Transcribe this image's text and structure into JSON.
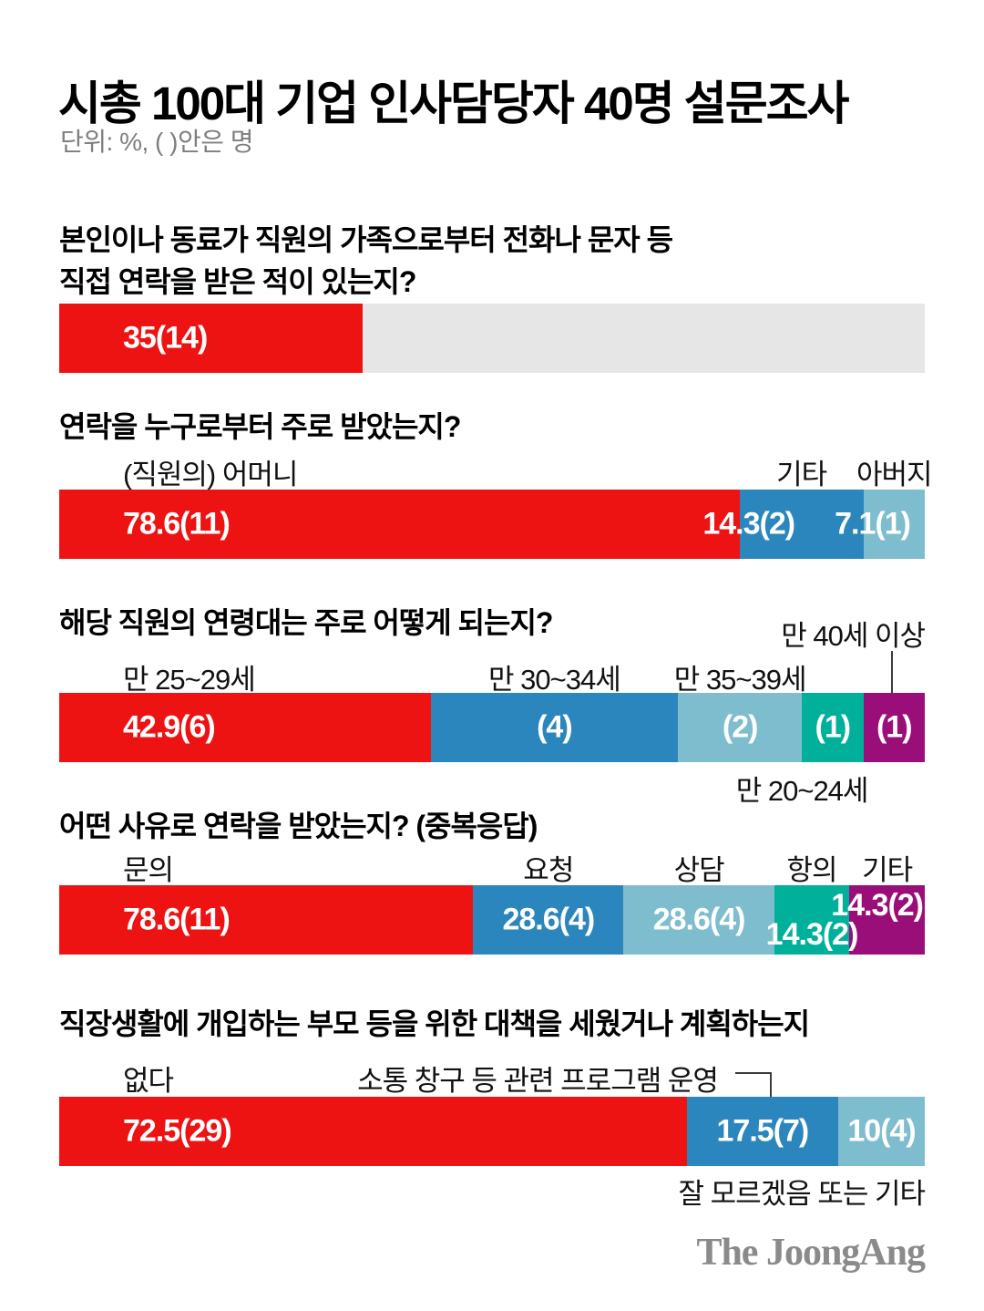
{
  "title": "시총 100대 기업 인사담당자 40명 설문조사",
  "unit_note": "단위: %, ( )안은 명",
  "logo_text": "The JoongAng",
  "colors": {
    "red": "#ee1313",
    "blue": "#2b86bd",
    "light_blue": "#7dbdcd",
    "teal": "#00b09b",
    "purple": "#9a0e79",
    "track_gray": "#e6e6e6",
    "connector": "#3c3c3c",
    "text_black": "#111111",
    "muted_gray": "#7e7e7e",
    "logo_gray": "#8a8a8a"
  },
  "chart_data": [
    {
      "type": "bar",
      "question": "본인이나 동료가 직원의 가족으로부터 전화나 문자 등\n직접 연락을 받은 적이 있는지?",
      "multi_response": false,
      "segments": [
        {
          "display": "35(14)",
          "pct": 35,
          "count": 14,
          "color": "red"
        }
      ]
    },
    {
      "type": "bar",
      "question": "연락을 누구로부터 주로 받았는지?",
      "multi_response": false,
      "segments": [
        {
          "label": "(직원의) 어머니",
          "display": "78.6(11)",
          "pct": 78.6,
          "count": 11,
          "color": "red"
        },
        {
          "label": "기타",
          "display": "14.3(2)",
          "pct": 14.3,
          "count": 2,
          "color": "blue"
        },
        {
          "label": "아버지",
          "display": "7.1(1)",
          "pct": 7.1,
          "count": 1,
          "color": "light_blue"
        }
      ]
    },
    {
      "type": "bar",
      "question": "해당 직원의 연령대는 주로 어떻게 되는지?",
      "multi_response": false,
      "segments": [
        {
          "label": "만 25~29세",
          "display": "42.9(6)",
          "pct": 42.9,
          "count": 6,
          "color": "red"
        },
        {
          "label": "만 30~34세",
          "display": "(4)",
          "pct": 28.6,
          "count": 4,
          "color": "blue"
        },
        {
          "label": "만 35~39세",
          "display": "(2)",
          "pct": 14.3,
          "count": 2,
          "color": "light_blue"
        },
        {
          "label": "만 20~24세",
          "display": "(1)",
          "pct": 7.1,
          "count": 1,
          "color": "teal"
        },
        {
          "label": "만 40세 이상",
          "display": "(1)",
          "pct": 7.1,
          "count": 1,
          "color": "purple"
        }
      ]
    },
    {
      "type": "bar",
      "question": "어떤 사유로 연락을 받았는지? (중복응답)",
      "multi_response": true,
      "segments": [
        {
          "label": "문의",
          "display": "78.6(11)",
          "pct": 78.6,
          "count": 11,
          "color": "red"
        },
        {
          "label": "요청",
          "display": "28.6(4)",
          "pct": 28.6,
          "count": 4,
          "color": "blue"
        },
        {
          "label": "상담",
          "display": "28.6(4)",
          "pct": 28.6,
          "count": 4,
          "color": "light_blue"
        },
        {
          "label": "항의",
          "display": "14.3(2)",
          "pct": 14.3,
          "count": 2,
          "color": "teal"
        },
        {
          "label": "기타",
          "display": "14.3(2)",
          "pct": 14.3,
          "count": 2,
          "color": "purple"
        }
      ]
    },
    {
      "type": "bar",
      "question": "직장생활에 개입하는 부모 등을 위한 대책을 세웠거나 계획하는지",
      "multi_response": false,
      "segments": [
        {
          "label": "없다",
          "display": "72.5(29)",
          "pct": 72.5,
          "count": 29,
          "color": "red"
        },
        {
          "label": "소통 창구 등 관련 프로그램 운영",
          "display": "17.5(7)",
          "pct": 17.5,
          "count": 7,
          "color": "blue"
        },
        {
          "label": "잘 모르겠음 또는 기타",
          "display": "10(4)",
          "pct": 10,
          "count": 4,
          "color": "light_blue"
        }
      ]
    }
  ]
}
